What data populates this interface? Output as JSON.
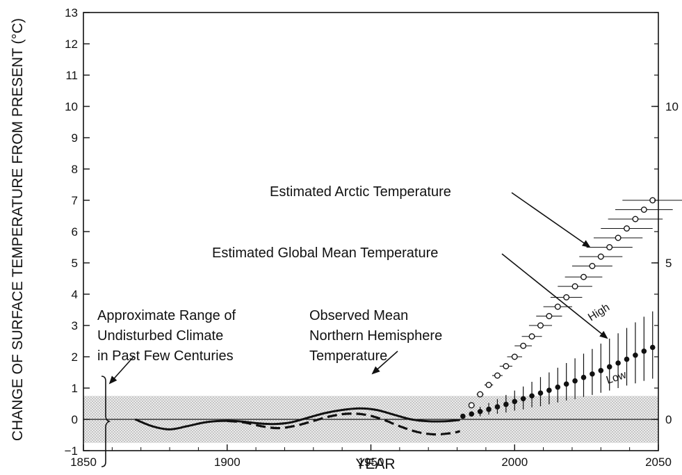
{
  "chart_data": {
    "type": "line",
    "title": "",
    "xlabel": "YEAR",
    "ylabel": "CHANGE OF SURFACE TEMPERATURE FROM PRESENT (°C)",
    "xlim": [
      1850,
      2050
    ],
    "ylim": [
      -1,
      13
    ],
    "x_ticks": [
      1850,
      1900,
      1950,
      2000,
      2050
    ],
    "y_ticks": [
      -1,
      0,
      1,
      2,
      3,
      4,
      5,
      6,
      7,
      8,
      9,
      10,
      11,
      12,
      13
    ],
    "y2_ticks": [
      0,
      5,
      10
    ],
    "grid": false,
    "band": {
      "name": "Approximate Range of Undisturbed Climate in Past Few Centuries",
      "ymin": -0.75,
      "ymax": 0.75
    },
    "series": [
      {
        "name": "Observed Mean Northern Hemisphere Temperature",
        "style": "solid",
        "x": [
          1868,
          1874,
          1880,
          1886,
          1892,
          1898,
          1904,
          1910,
          1916,
          1922,
          1928,
          1934,
          1940,
          1946,
          1952,
          1958,
          1964,
          1970,
          1976,
          1981
        ],
        "y": [
          0.0,
          -0.22,
          -0.32,
          -0.22,
          -0.1,
          -0.05,
          -0.06,
          -0.12,
          -0.15,
          -0.1,
          0.05,
          0.2,
          0.3,
          0.35,
          0.3,
          0.15,
          0.0,
          -0.06,
          -0.06,
          -0.02
        ]
      },
      {
        "name": "Observed Mean Northern Hemisphere Temperature (dashed)",
        "style": "dashed",
        "x": [
          1900,
          1906,
          1912,
          1918,
          1924,
          1930,
          1936,
          1942,
          1948,
          1954,
          1960,
          1966,
          1972,
          1978,
          1981
        ],
        "y": [
          -0.05,
          -0.1,
          -0.22,
          -0.28,
          -0.2,
          -0.05,
          0.1,
          0.18,
          0.15,
          0.0,
          -0.22,
          -0.4,
          -0.48,
          -0.44,
          -0.38
        ]
      },
      {
        "name": "Estimated Arctic Temperature",
        "style": "open-circles",
        "x": [
          1985,
          1988,
          1991,
          1994,
          1997,
          2000,
          2003,
          2006,
          2009,
          2012,
          2015,
          2018,
          2021,
          2024,
          2027,
          2030,
          2033,
          2036,
          2039,
          2042,
          2045,
          2048
        ],
        "y": [
          0.45,
          0.8,
          1.1,
          1.4,
          1.7,
          2.0,
          2.35,
          2.65,
          3.0,
          3.3,
          3.6,
          3.9,
          4.25,
          4.55,
          4.9,
          5.2,
          5.5,
          5.8,
          6.1,
          6.4,
          6.7,
          7.0
        ],
        "range_halfwidth_years": [
          1,
          1.2,
          1.5,
          1.8,
          2.2,
          2.6,
          3,
          3.5,
          4,
          4.5,
          5,
          5.5,
          6,
          6.5,
          7,
          7.5,
          8,
          8.5,
          9,
          9.5,
          10,
          10.5
        ]
      },
      {
        "name": "Estimated Global Mean Temperature",
        "style": "filled-circles",
        "x": [
          1982,
          1985,
          1988,
          1991,
          1994,
          1997,
          2000,
          2003,
          2006,
          2009,
          2012,
          2015,
          2018,
          2021,
          2024,
          2027,
          2030,
          2033,
          2036,
          2039,
          2042,
          2045,
          2048
        ],
        "y": [
          0.1,
          0.17,
          0.25,
          0.32,
          0.4,
          0.48,
          0.57,
          0.66,
          0.75,
          0.84,
          0.93,
          1.03,
          1.13,
          1.23,
          1.34,
          1.45,
          1.56,
          1.68,
          1.8,
          1.92,
          2.05,
          2.18,
          2.3
        ],
        "low": [
          0.1,
          0.1,
          0.1,
          0.15,
          0.18,
          0.22,
          0.28,
          0.32,
          0.38,
          0.42,
          0.48,
          0.54,
          0.6,
          0.65,
          0.72,
          0.78,
          0.85,
          0.92,
          1.0,
          1.08,
          1.15,
          1.23,
          1.3
        ],
        "high": [
          0.1,
          0.25,
          0.4,
          0.52,
          0.65,
          0.78,
          0.92,
          1.05,
          1.2,
          1.35,
          1.5,
          1.65,
          1.8,
          1.95,
          2.1,
          2.25,
          2.42,
          2.58,
          2.75,
          2.92,
          3.1,
          3.28,
          3.45
        ]
      }
    ],
    "annotations": {
      "arctic_label": "Estimated Arctic Temperature",
      "global_label": "Estimated Global Mean Temperature",
      "band_lines": [
        "Approximate Range of",
        "Undisturbed Climate",
        "in Past Few Centuries"
      ],
      "observed_lines": [
        "Observed Mean",
        "Northern Hemisphere",
        "Temperature"
      ],
      "high": "High",
      "low": "Low"
    }
  }
}
